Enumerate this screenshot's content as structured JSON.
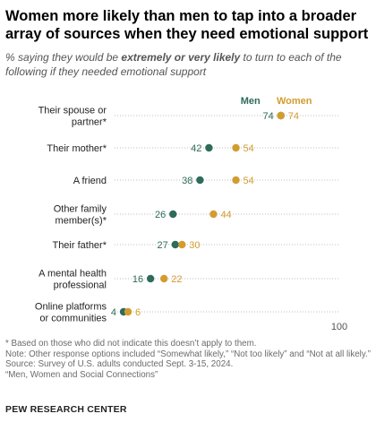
{
  "header": {
    "title": "Women more likely than men to tap into a broader array of sources when they need emotional support",
    "subtitle_pre": "% saying they would be ",
    "subtitle_bold": "extremely or very likely",
    "subtitle_post": " to turn to each of the following if they needed emotional support"
  },
  "chart_data": {
    "type": "dot",
    "categories": [
      [
        "Their spouse or",
        "partner*"
      ],
      [
        "Their mother*"
      ],
      [
        "A friend"
      ],
      [
        "Other family",
        "member(s)*"
      ],
      [
        "Their father*"
      ],
      [
        "A mental health",
        "professional"
      ],
      [
        "Online platforms",
        "or communities"
      ]
    ],
    "series": [
      {
        "name": "Men",
        "color": "#2e6b5a",
        "values": [
          74,
          42,
          38,
          26,
          27,
          16,
          4
        ]
      },
      {
        "name": "Women",
        "color": "#d39c2f",
        "values": [
          74,
          54,
          54,
          44,
          30,
          22,
          6
        ]
      }
    ],
    "xlim": [
      0,
      100
    ],
    "axis_end_label": "100",
    "legend": [
      "Men",
      "Women"
    ],
    "dotted_guides": true
  },
  "notes": {
    "note1": "* Based on those who did not indicate this doesn’t apply to them.",
    "note2": "Note: Other response options included “Somewhat likely,” “Not too likely” and “Not at all likely.”",
    "source": "Source: Survey of U.S. adults conducted Sept. 3-15, 2024.",
    "report": "“Men, Women and Social Connections”"
  },
  "footer": {
    "org": "PEW RESEARCH CENTER"
  }
}
